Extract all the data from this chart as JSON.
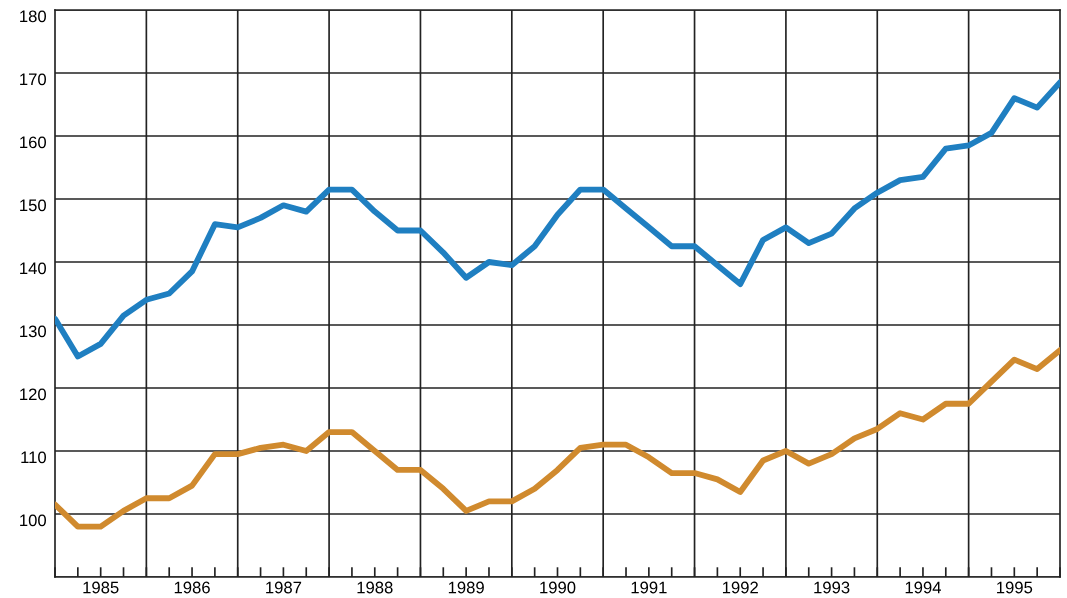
{
  "chart_data": {
    "type": "line",
    "x": [
      1985,
      1985.25,
      1985.5,
      1985.75,
      1986,
      1986.25,
      1986.5,
      1986.75,
      1987,
      1987.25,
      1987.5,
      1987.75,
      1988,
      1988.25,
      1988.5,
      1988.75,
      1989,
      1989.25,
      1989.5,
      1989.75,
      1990,
      1990.25,
      1990.5,
      1990.75,
      1991,
      1991.25,
      1991.5,
      1991.75,
      1992,
      1992.25,
      1992.5,
      1992.75,
      1993,
      1993.25,
      1993.5,
      1993.75,
      1994,
      1994.25,
      1994.5,
      1994.75,
      1995,
      1995.25,
      1995.5,
      1995.75,
      1996
    ],
    "series": [
      {
        "color": "#1f7fc1",
        "values": [
          131,
          125,
          127,
          131.5,
          134,
          135,
          138.5,
          146,
          145.5,
          147,
          149,
          148,
          151.5,
          151.5,
          148,
          145,
          145,
          141.5,
          137.5,
          140,
          139.5,
          142.5,
          147.5,
          151.5,
          151.5,
          148.5,
          145.5,
          142.5,
          142.5,
          139.5,
          136.5,
          143.5,
          145.5,
          143,
          144.5,
          148.5,
          151,
          153,
          153.5,
          158,
          158.5,
          160.5,
          166,
          164.5,
          168.5
        ]
      },
      {
        "color": "#d08a2e",
        "values": [
          101.5,
          98,
          98,
          100.5,
          102.5,
          102.5,
          104.5,
          109.5,
          109.5,
          110.5,
          111,
          110,
          113,
          113,
          110,
          107,
          107,
          104,
          100.5,
          102,
          102,
          104,
          107,
          110.5,
          111,
          111,
          109,
          106.5,
          106.5,
          105.5,
          103.5,
          108.5,
          110,
          108,
          109.5,
          112,
          113.5,
          116,
          115,
          117.5,
          117.5,
          121,
          124.5,
          123,
          126
        ]
      }
    ],
    "xlim": [
      1985,
      1996
    ],
    "xticks": [
      {
        "value": 1985,
        "label": null
      },
      {
        "value": 1985.25,
        "label": null
      },
      {
        "value": 1985.5,
        "label": "1985"
      },
      {
        "value": 1985.75,
        "label": null
      },
      {
        "value": 1986,
        "label": null
      },
      {
        "value": 1986.25,
        "label": null
      },
      {
        "value": 1986.5,
        "label": "1986"
      },
      {
        "value": 1986.75,
        "label": null
      },
      {
        "value": 1987,
        "label": null
      },
      {
        "value": 1987.25,
        "label": null
      },
      {
        "value": 1987.5,
        "label": "1987"
      },
      {
        "value": 1987.75,
        "label": null
      },
      {
        "value": 1988,
        "label": null
      },
      {
        "value": 1988.25,
        "label": null
      },
      {
        "value": 1988.5,
        "label": "1988"
      },
      {
        "value": 1988.75,
        "label": null
      },
      {
        "value": 1989,
        "label": null
      },
      {
        "value": 1989.25,
        "label": null
      },
      {
        "value": 1989.5,
        "label": "1989"
      },
      {
        "value": 1989.75,
        "label": null
      },
      {
        "value": 1990,
        "label": null
      },
      {
        "value": 1990.25,
        "label": null
      },
      {
        "value": 1990.5,
        "label": "1990"
      },
      {
        "value": 1990.75,
        "label": null
      },
      {
        "value": 1991,
        "label": null
      },
      {
        "value": 1991.25,
        "label": null
      },
      {
        "value": 1991.5,
        "label": "1991"
      },
      {
        "value": 1991.75,
        "label": null
      },
      {
        "value": 1992,
        "label": null
      },
      {
        "value": 1992.25,
        "label": null
      },
      {
        "value": 1992.5,
        "label": "1992"
      },
      {
        "value": 1992.75,
        "label": null
      },
      {
        "value": 1993,
        "label": null
      },
      {
        "value": 1993.25,
        "label": null
      },
      {
        "value": 1993.5,
        "label": "1993"
      },
      {
        "value": 1993.75,
        "label": null
      },
      {
        "value": 1994,
        "label": null
      },
      {
        "value": 1994.25,
        "label": null
      },
      {
        "value": 1994.5,
        "label": "1994"
      },
      {
        "value": 1994.75,
        "label": null
      },
      {
        "value": 1995,
        "label": null
      },
      {
        "value": 1995.25,
        "label": null
      },
      {
        "value": 1995.5,
        "label": "1995"
      },
      {
        "value": 1995.75,
        "label": null
      },
      {
        "value": 1996,
        "label": null
      }
    ],
    "ylim": [
      90,
      180
    ],
    "yticks": [
      {
        "value": 90,
        "label": null
      },
      100,
      110,
      120,
      130,
      140,
      150,
      160,
      170,
      180
    ],
    "grid": "y",
    "ref_lines": [
      {
        "axis": "x",
        "value": 1986,
        "color": "#222222"
      },
      {
        "axis": "x",
        "value": 1987,
        "color": "#222222"
      },
      {
        "axis": "x",
        "value": 1988,
        "color": "#222222"
      },
      {
        "axis": "x",
        "value": 1989,
        "color": "#222222"
      },
      {
        "axis": "x",
        "value": 1990,
        "color": "#222222"
      },
      {
        "axis": "x",
        "value": 1991,
        "color": "#222222"
      },
      {
        "axis": "x",
        "value": 1992,
        "color": "#222222"
      },
      {
        "axis": "x",
        "value": 1993,
        "color": "#222222"
      },
      {
        "axis": "x",
        "value": 1994,
        "color": "#222222"
      },
      {
        "axis": "x",
        "value": 1995,
        "color": "#222222"
      }
    ],
    "marker": "none",
    "line_style": "solid"
  }
}
